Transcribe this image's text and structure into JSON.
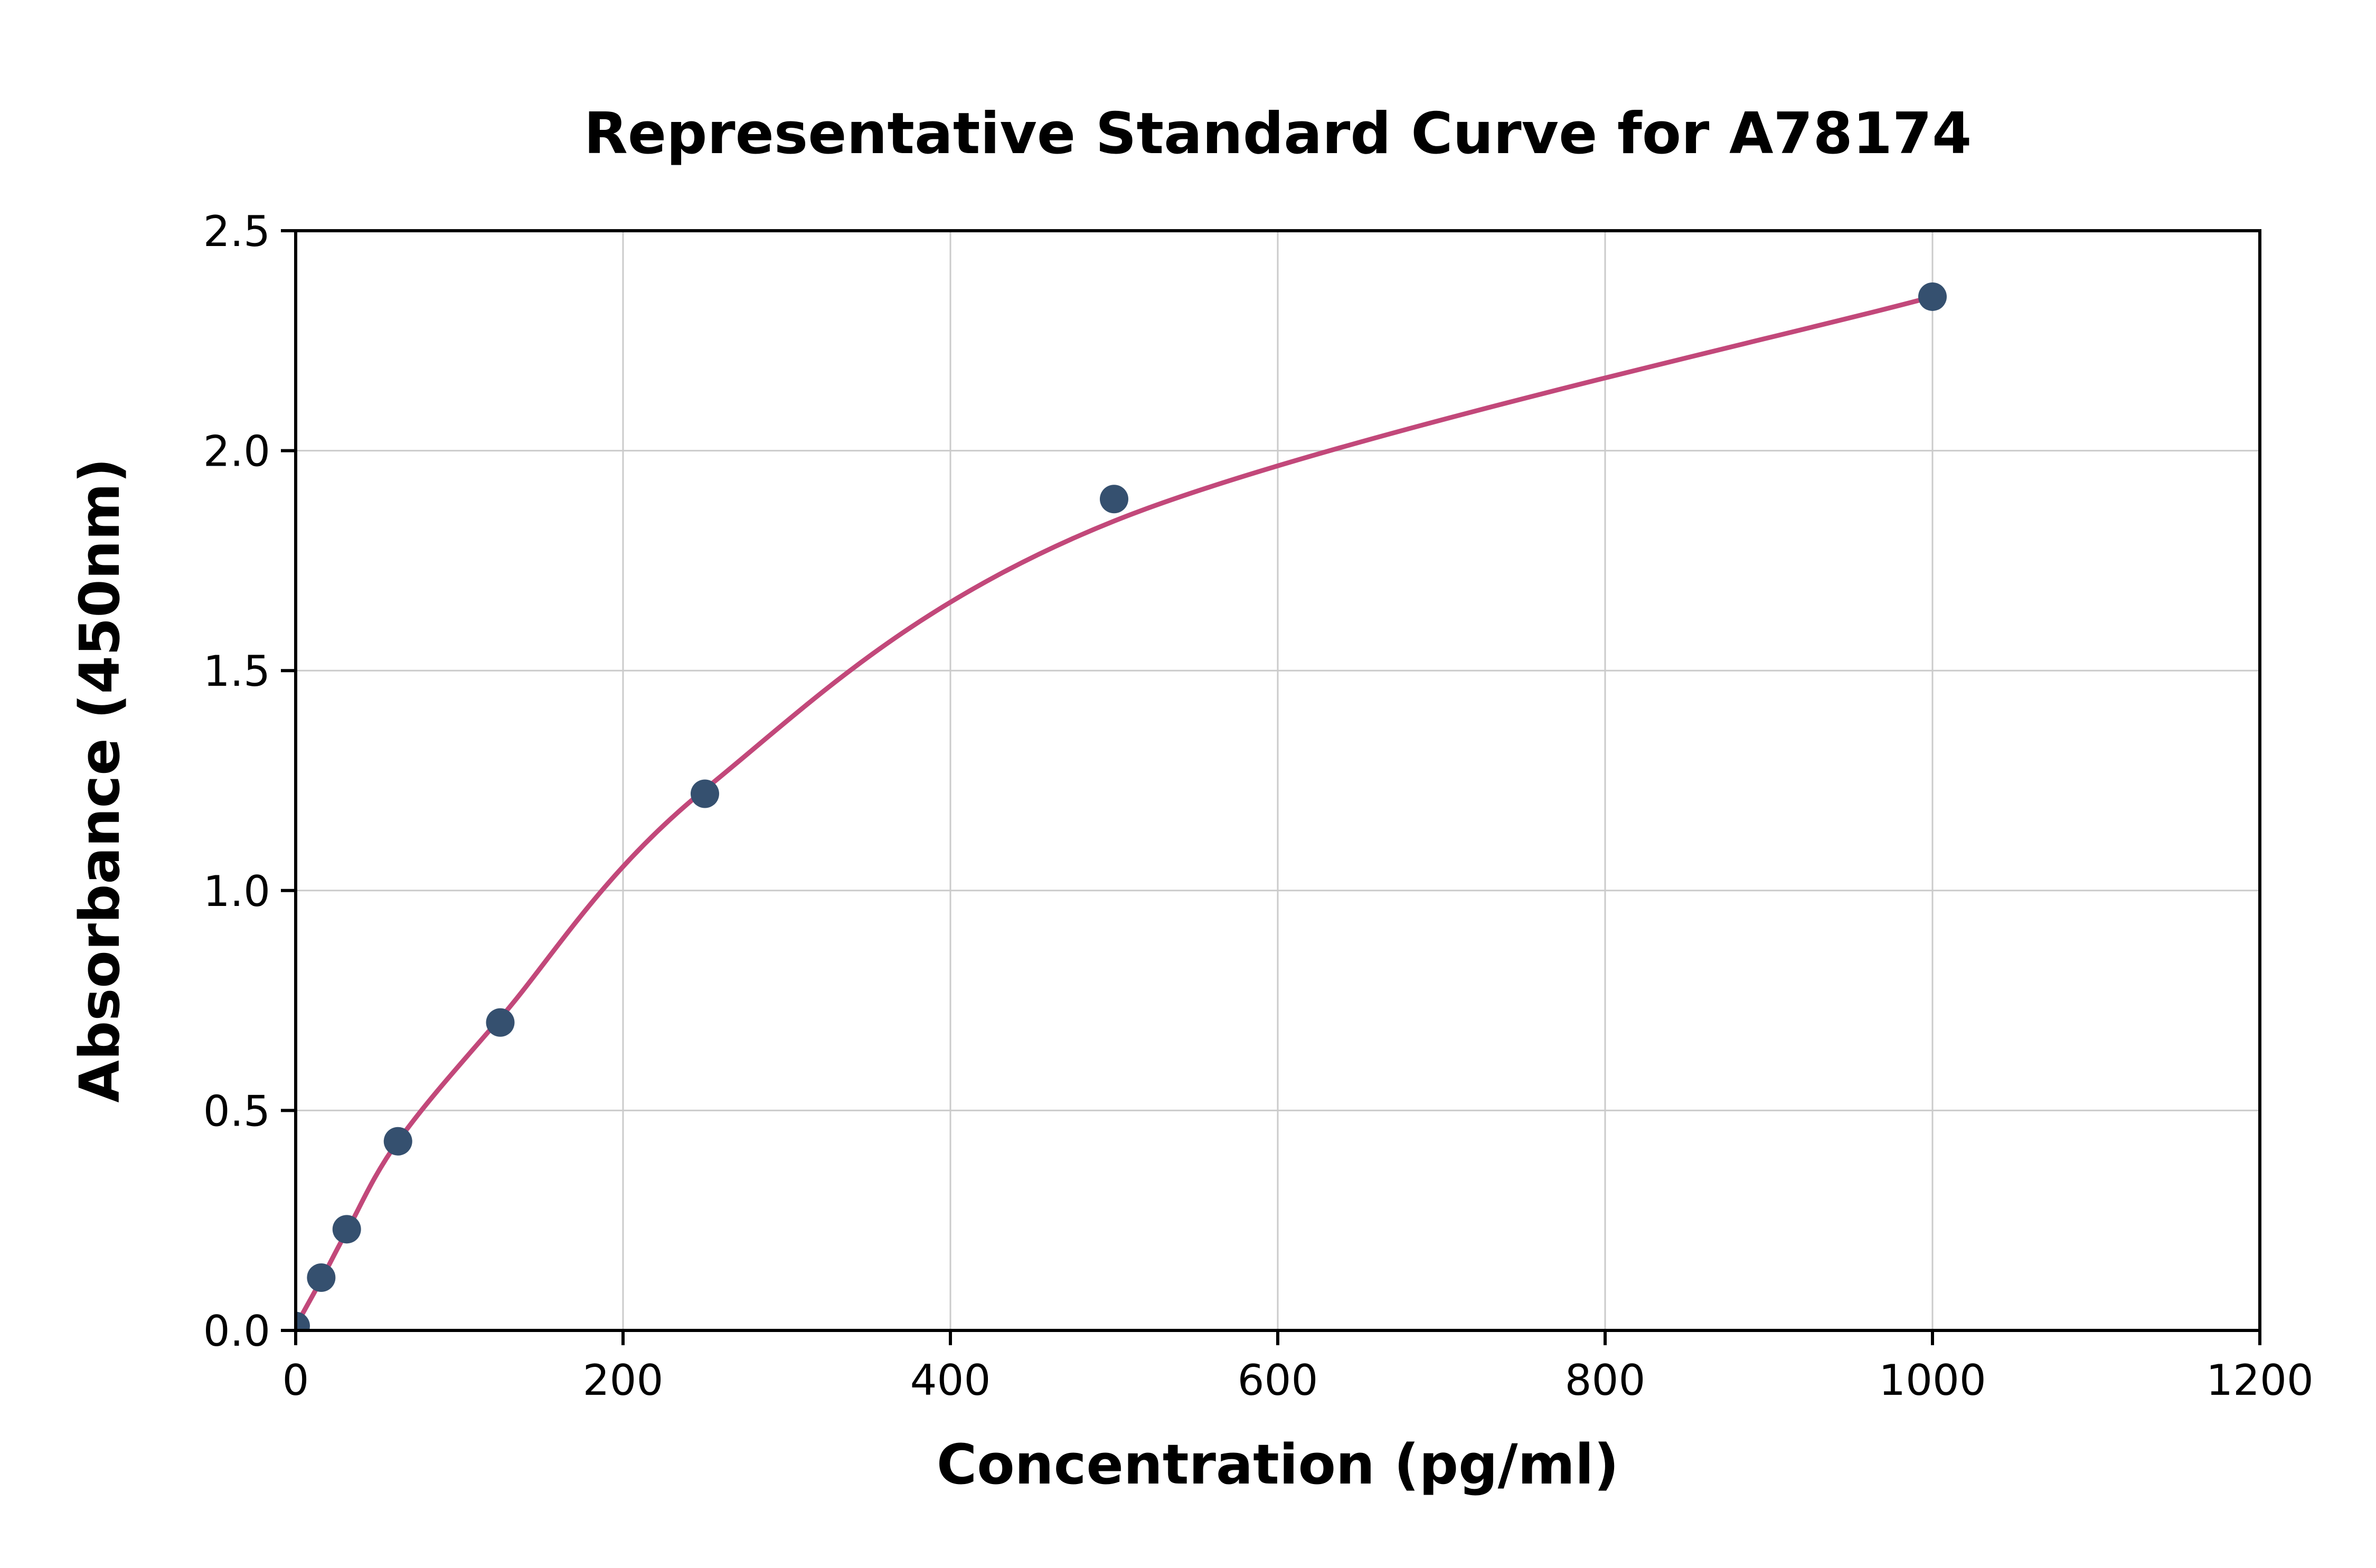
{
  "chart_data": {
    "type": "scatter",
    "title": "Representative Standard Curve for A78174",
    "xlabel": "Concentration (pg/ml)",
    "ylabel": "Absorbance (450nm)",
    "xlim": [
      0,
      1200
    ],
    "ylim": [
      0,
      2.5
    ],
    "grid": true,
    "legend": "none",
    "x_ticks": [
      0,
      200,
      400,
      600,
      800,
      1000,
      1200
    ],
    "x_tick_labels": [
      "0",
      "200",
      "400",
      "600",
      "800",
      "1000",
      "1200"
    ],
    "y_ticks": [
      0,
      0.5,
      1.0,
      1.5,
      2.0,
      2.5
    ],
    "y_tick_labels": [
      "0.0",
      "0.5",
      "1.0",
      "1.5",
      "2.0",
      "2.5"
    ],
    "series": [
      {
        "name": "standard-points",
        "type": "scatter",
        "x": [
          0,
          15.6,
          31.2,
          62.5,
          125,
          250,
          500,
          1000
        ],
        "y": [
          0.01,
          0.12,
          0.23,
          0.43,
          0.7,
          1.22,
          1.89,
          2.35
        ],
        "color": "#35506f"
      },
      {
        "name": "fitted-curve",
        "type": "line",
        "x": [
          0,
          15.6,
          31.2,
          62.5,
          125,
          250,
          500,
          1000
        ],
        "y": [
          0.01,
          0.115,
          0.225,
          0.43,
          0.71,
          1.23,
          1.84,
          2.35
        ],
        "color": "#c2487a"
      }
    ],
    "colors": {
      "point": "#35506f",
      "curve": "#c2487a",
      "grid": "#cbcbcb",
      "spine": "#000000",
      "background": "#ffffff"
    }
  }
}
